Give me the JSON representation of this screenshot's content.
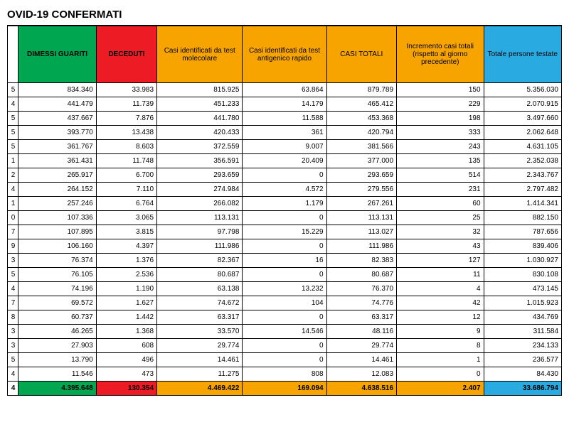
{
  "title": "OVID-19 CONFERMATI",
  "columns": {
    "idx": "",
    "dimessi": "DIMESSI GUARITI",
    "deceduti": "DECEDUTI",
    "molecolare": "Casi identificati da test molecolare",
    "antigenico": "Casi identificati da test antigenico rapido",
    "totali": "CASI TOTALI",
    "incremento": "Incremento casi totali (rispetto al giorno precedente)",
    "testate": "Totale persone testate"
  },
  "rows": [
    {
      "idx": "5",
      "dimessi": "834.340",
      "deceduti": "33.983",
      "molecolare": "815.925",
      "antigenico": "63.864",
      "totali": "879.789",
      "incremento": "150",
      "testate": "5.356.030"
    },
    {
      "idx": "4",
      "dimessi": "441.479",
      "deceduti": "11.739",
      "molecolare": "451.233",
      "antigenico": "14.179",
      "totali": "465.412",
      "incremento": "229",
      "testate": "2.070.915"
    },
    {
      "idx": "5",
      "dimessi": "437.667",
      "deceduti": "7.876",
      "molecolare": "441.780",
      "antigenico": "11.588",
      "totali": "453.368",
      "incremento": "198",
      "testate": "3.497.660"
    },
    {
      "idx": "5",
      "dimessi": "393.770",
      "deceduti": "13.438",
      "molecolare": "420.433",
      "antigenico": "361",
      "totali": "420.794",
      "incremento": "333",
      "testate": "2.062.648"
    },
    {
      "idx": "5",
      "dimessi": "361.767",
      "deceduti": "8.603",
      "molecolare": "372.559",
      "antigenico": "9.007",
      "totali": "381.566",
      "incremento": "243",
      "testate": "4.631.105"
    },
    {
      "idx": "1",
      "dimessi": "361.431",
      "deceduti": "11.748",
      "molecolare": "356.591",
      "antigenico": "20.409",
      "totali": "377.000",
      "incremento": "135",
      "testate": "2.352.038"
    },
    {
      "idx": "2",
      "dimessi": "265.917",
      "deceduti": "6.700",
      "molecolare": "293.659",
      "antigenico": "0",
      "totali": "293.659",
      "incremento": "514",
      "testate": "2.343.767"
    },
    {
      "idx": "4",
      "dimessi": "264.152",
      "deceduti": "7.110",
      "molecolare": "274.984",
      "antigenico": "4.572",
      "totali": "279.556",
      "incremento": "231",
      "testate": "2.797.482"
    },
    {
      "idx": "1",
      "dimessi": "257.246",
      "deceduti": "6.764",
      "molecolare": "266.082",
      "antigenico": "1.179",
      "totali": "267.261",
      "incremento": "60",
      "testate": "1.414.341"
    },
    {
      "idx": "0",
      "dimessi": "107.336",
      "deceduti": "3.065",
      "molecolare": "113.131",
      "antigenico": "0",
      "totali": "113.131",
      "incremento": "25",
      "testate": "882.150"
    },
    {
      "idx": "7",
      "dimessi": "107.895",
      "deceduti": "3.815",
      "molecolare": "97.798",
      "antigenico": "15.229",
      "totali": "113.027",
      "incremento": "32",
      "testate": "787.656"
    },
    {
      "idx": "9",
      "dimessi": "106.160",
      "deceduti": "4.397",
      "molecolare": "111.986",
      "antigenico": "0",
      "totali": "111.986",
      "incremento": "43",
      "testate": "839.406"
    },
    {
      "idx": "3",
      "dimessi": "76.374",
      "deceduti": "1.376",
      "molecolare": "82.367",
      "antigenico": "16",
      "totali": "82.383",
      "incremento": "127",
      "testate": "1.030.927"
    },
    {
      "idx": "5",
      "dimessi": "76.105",
      "deceduti": "2.536",
      "molecolare": "80.687",
      "antigenico": "0",
      "totali": "80.687",
      "incremento": "11",
      "testate": "830.108"
    },
    {
      "idx": "4",
      "dimessi": "74.196",
      "deceduti": "1.190",
      "molecolare": "63.138",
      "antigenico": "13.232",
      "totali": "76.370",
      "incremento": "4",
      "testate": "473.145"
    },
    {
      "idx": "7",
      "dimessi": "69.572",
      "deceduti": "1.627",
      "molecolare": "74.672",
      "antigenico": "104",
      "totali": "74.776",
      "incremento": "42",
      "testate": "1.015.923"
    },
    {
      "idx": "8",
      "dimessi": "60.737",
      "deceduti": "1.442",
      "molecolare": "63.317",
      "antigenico": "0",
      "totali": "63.317",
      "incremento": "12",
      "testate": "434.769"
    },
    {
      "idx": "3",
      "dimessi": "46.265",
      "deceduti": "1.368",
      "molecolare": "33.570",
      "antigenico": "14.546",
      "totali": "48.116",
      "incremento": "9",
      "testate": "311.584"
    },
    {
      "idx": "3",
      "dimessi": "27.903",
      "deceduti": "608",
      "molecolare": "29.774",
      "antigenico": "0",
      "totali": "29.774",
      "incremento": "8",
      "testate": "234.133"
    },
    {
      "idx": "5",
      "dimessi": "13.790",
      "deceduti": "496",
      "molecolare": "14.461",
      "antigenico": "0",
      "totali": "14.461",
      "incremento": "1",
      "testate": "236.577"
    },
    {
      "idx": "4",
      "dimessi": "11.546",
      "deceduti": "473",
      "molecolare": "11.275",
      "antigenico": "808",
      "totali": "12.083",
      "incremento": "0",
      "testate": "84.430"
    }
  ],
  "totals": {
    "idx": "4",
    "dimessi": "4.395.648",
    "deceduti": "130.354",
    "molecolare": "4.469.422",
    "antigenico": "169.094",
    "totali": "4.638.516",
    "incremento": "2.407",
    "testate": "33.686.794"
  }
}
